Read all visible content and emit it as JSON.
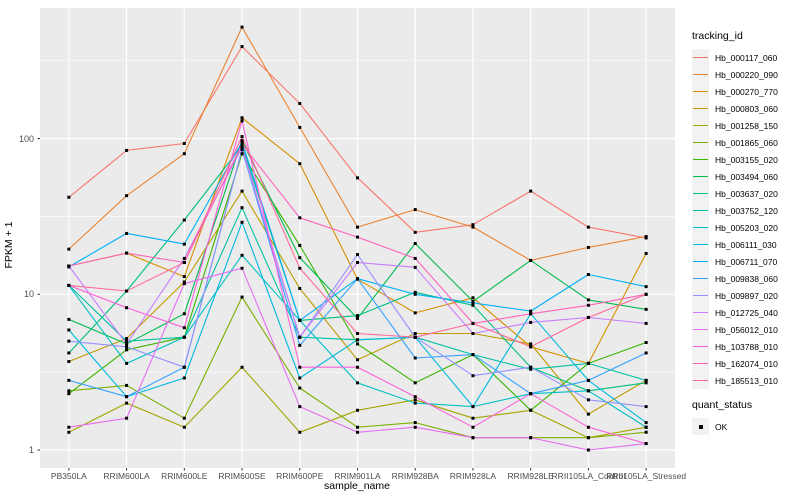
{
  "figure": {
    "background": "#FFFFFF",
    "panel_background": "#EBEBEB",
    "gridline_color": "#FFFFFF",
    "tick_color": "#333333",
    "axis_text_color": "#4D4D4D",
    "point_color": "#000000",
    "point_shape": "square"
  },
  "chart_data": {
    "type": "line",
    "title": "",
    "xlabel": "sample_name",
    "ylabel": "FPKM + 1",
    "y_scale": "log10",
    "ylim": [
      0.77,
      660
    ],
    "grid": true,
    "y_ticks": [
      1,
      10,
      100
    ],
    "y_tick_labels": [
      "1",
      "10",
      "100"
    ],
    "y_minor_ticks": [
      3.162,
      31.62,
      316.2
    ],
    "categories": [
      "PB350LA",
      "RRIM600LA",
      "RRIM600LE",
      "RRIM600SE",
      "RRIM600PE",
      "RRIM901LA",
      "RRIM928BA",
      "RRIM928LA",
      "RRIM928LE",
      "RRII105LA_Control",
      "RRII105LA_Stressed"
    ],
    "legend": {
      "title": "tracking_id",
      "position": "right"
    },
    "quant_legend": {
      "title": "quant_status",
      "items": [
        {
          "label": "OK",
          "marker": "square",
          "color": "#000000"
        }
      ]
    },
    "series": [
      {
        "name": "Hb_000117_060",
        "color": "#F8766D",
        "values": [
          42,
          84,
          93,
          390,
          168,
          56,
          25,
          28,
          46,
          27,
          23
        ]
      },
      {
        "name": "Hb_000220_090",
        "color": "#EA8331",
        "values": [
          19.5,
          43,
          80,
          520,
          118,
          27,
          35,
          27,
          16.5,
          20,
          23.5
        ]
      },
      {
        "name": "Hb_000270_770",
        "color": "#D89000",
        "values": [
          15.2,
          18.4,
          13,
          136,
          69,
          12.5,
          7.6,
          9.5,
          4.6,
          3.6,
          18.3
        ]
      },
      {
        "name": "Hb_000803_060",
        "color": "#C09B00",
        "values": [
          3.7,
          5.2,
          12,
          46,
          10.9,
          3.8,
          5.6,
          5.6,
          4.8,
          1.7,
          2.8
        ]
      },
      {
        "name": "Hb_001258_150",
        "color": "#A3A500",
        "values": [
          1.3,
          2.0,
          1.4,
          3.4,
          1.3,
          1.8,
          2.1,
          1.6,
          1.8,
          1.2,
          1.4
        ]
      },
      {
        "name": "Hb_001865_060",
        "color": "#7CAE00",
        "values": [
          2.4,
          2.6,
          1.6,
          9.6,
          2.5,
          1.4,
          1.5,
          1.2,
          1.2,
          1.2,
          1.3
        ]
      },
      {
        "name": "Hb_003155_020",
        "color": "#39B600",
        "values": [
          2.3,
          4.4,
          5.3,
          80,
          20.6,
          4.8,
          2.7,
          4.1,
          1.8,
          3.6,
          4.9
        ]
      },
      {
        "name": "Hb_003494_060",
        "color": "#00BB4E",
        "values": [
          6.9,
          4.8,
          7.5,
          97,
          17.2,
          7.0,
          21.2,
          9.0,
          16.5,
          9.2,
          8.0
        ]
      },
      {
        "name": "Hb_003637_020",
        "color": "#00BF7D",
        "values": [
          4.2,
          10.5,
          30,
          90,
          6.8,
          7.3,
          10.3,
          8.5,
          3.4,
          2.4,
          2.7
        ]
      },
      {
        "name": "Hb_003752_120",
        "color": "#00C1A3",
        "values": [
          11.4,
          5.0,
          5.3,
          36,
          5.3,
          5.1,
          5.3,
          4.1,
          3.3,
          3.6,
          2.8
        ]
      },
      {
        "name": "Hb_005203_020",
        "color": "#00BFC4",
        "values": [
          11.4,
          3.6,
          5.3,
          17.8,
          6.8,
          2.7,
          2.0,
          1.9,
          2.3,
          2.4,
          1.4
        ]
      },
      {
        "name": "Hb_006111_030",
        "color": "#00BAE0",
        "values": [
          5.9,
          2.2,
          2.9,
          29,
          2.9,
          5.1,
          5.3,
          1.9,
          7.5,
          2.8,
          1.5
        ]
      },
      {
        "name": "Hb_006711_070",
        "color": "#00B0F6",
        "values": [
          15.0,
          24.6,
          21,
          95,
          6.8,
          12.6,
          10.0,
          8.8,
          7.8,
          13.4,
          11.2
        ]
      },
      {
        "name": "Hb_009838_060",
        "color": "#35A2FF",
        "values": [
          2.8,
          2.2,
          3.4,
          85,
          4.7,
          12.6,
          3.9,
          4.1,
          2.3,
          2.8,
          4.2
        ]
      },
      {
        "name": "Hb_009897_020",
        "color": "#9590FF",
        "values": [
          5.0,
          4.6,
          3.4,
          85,
          5.3,
          18.0,
          5.3,
          3.0,
          3.4,
          2.1,
          1.9
        ]
      },
      {
        "name": "Hb_012725_040",
        "color": "#C77CFF",
        "values": [
          15.2,
          4.8,
          17,
          88,
          5.3,
          16.0,
          14.9,
          5.6,
          6.6,
          7.1,
          6.5
        ]
      },
      {
        "name": "Hb_056012_010",
        "color": "#E76BF3",
        "values": [
          1.4,
          1.6,
          11.7,
          14.7,
          1.9,
          1.3,
          1.4,
          1.2,
          1.2,
          1.0,
          1.1
        ]
      },
      {
        "name": "Hb_103788_010",
        "color": "#FA62DB",
        "values": [
          11.4,
          8.2,
          6.1,
          130,
          3.4,
          3.4,
          2.2,
          1.4,
          2.3,
          1.4,
          1.1
        ]
      },
      {
        "name": "Hb_162074_010",
        "color": "#FF62BC",
        "values": [
          15.2,
          18.4,
          16,
          92,
          31,
          23.3,
          17.0,
          6.5,
          7.5,
          8.5,
          10.0
        ]
      },
      {
        "name": "Hb_185513_010",
        "color": "#FF6A98",
        "values": [
          11.4,
          10.5,
          16,
          103,
          14.7,
          5.6,
          5.3,
          6.5,
          4.6,
          7.1,
          10.0
        ]
      }
    ]
  }
}
